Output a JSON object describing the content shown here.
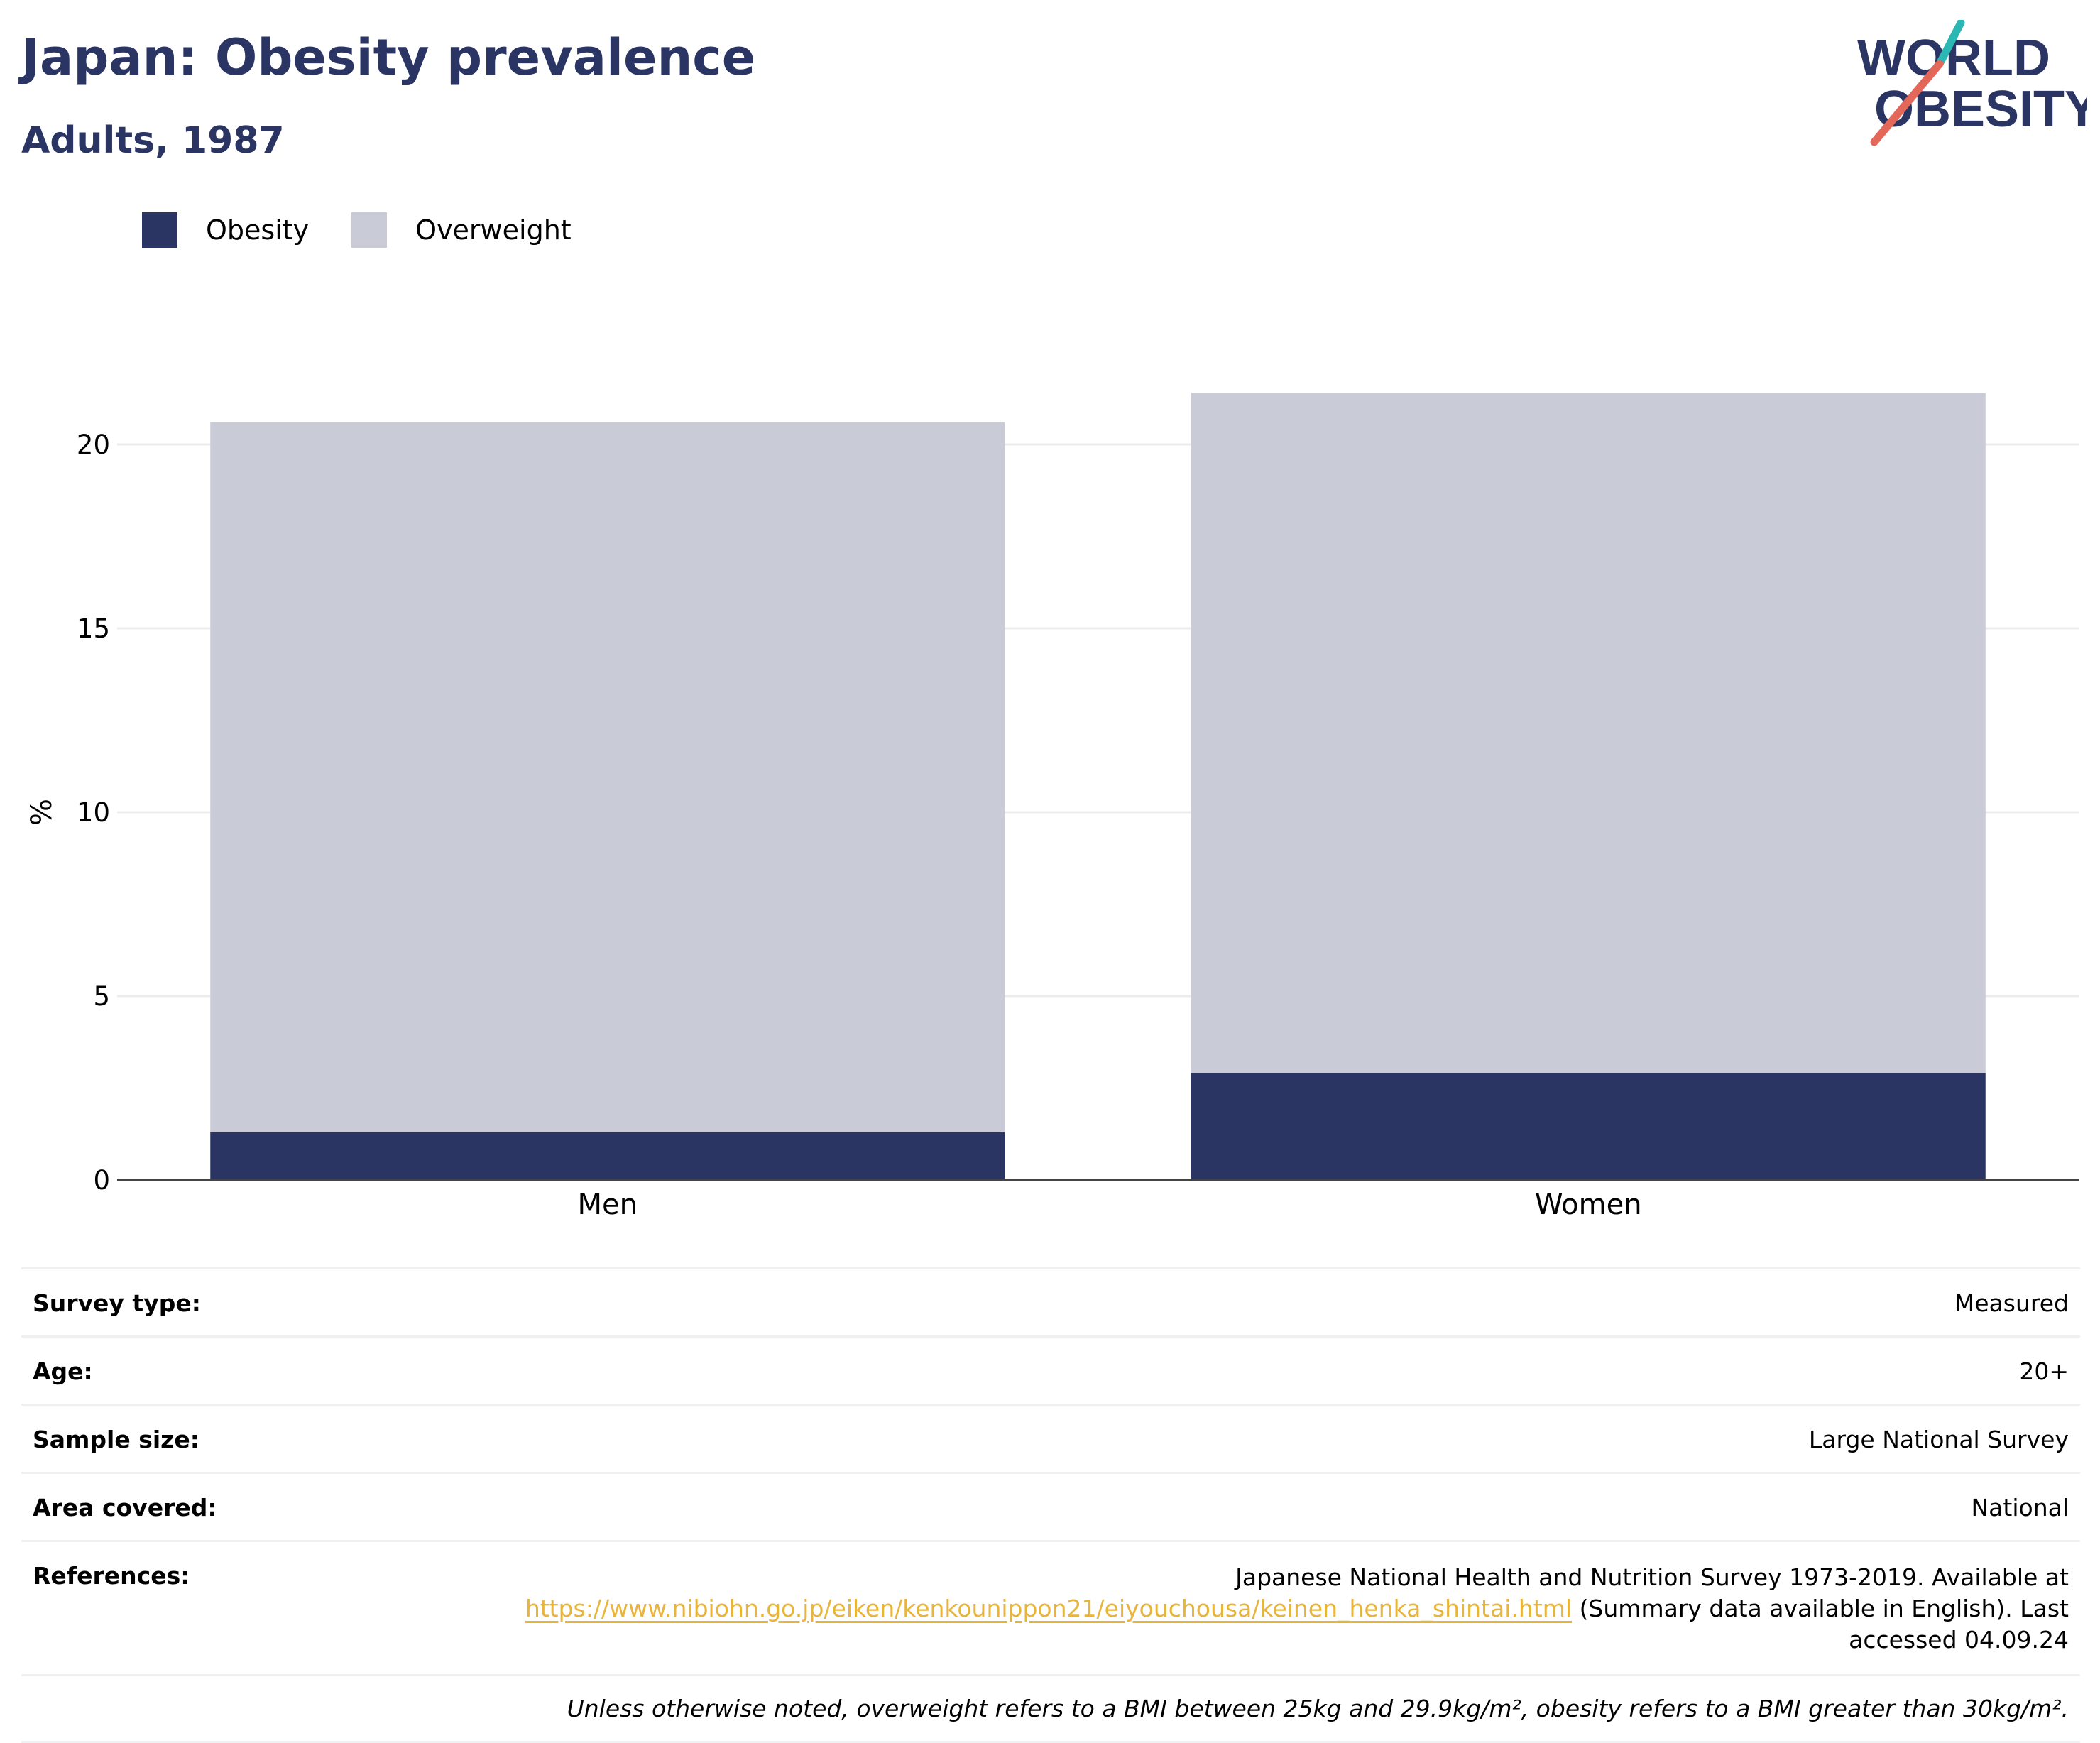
{
  "header": {
    "title": "Japan: Obesity prevalence",
    "subtitle": "Adults, 1987"
  },
  "logo": {
    "line1": "WORLD",
    "line2": "OBESITY",
    "colors": {
      "text": "#2b3563",
      "slash_red": "#e4685a",
      "slash_teal": "#2bb7b3"
    }
  },
  "legend": [
    {
      "label": "Obesity",
      "color": "#2b3563"
    },
    {
      "label": "Overweight",
      "color": "#c9cbd7"
    }
  ],
  "chart_data": {
    "type": "bar",
    "stacked": true,
    "categories": [
      "Men",
      "Women"
    ],
    "series": [
      {
        "name": "Obesity",
        "values": [
          1.3,
          2.9
        ],
        "color": "#2b3563"
      },
      {
        "name": "Overweight",
        "values": [
          19.3,
          18.5
        ],
        "color": "#c9cbd7"
      }
    ],
    "ylabel": "%",
    "xlabel": "",
    "ylim": [
      0,
      22
    ],
    "yticks": [
      0,
      5,
      10,
      15,
      20
    ],
    "grid": true,
    "legend_position": "top-left"
  },
  "table": {
    "rows": [
      {
        "label": "Survey type:",
        "value": "Measured"
      },
      {
        "label": "Age:",
        "value": "20+"
      },
      {
        "label": "Sample size:",
        "value": "Large National Survey"
      },
      {
        "label": "Area covered:",
        "value": "National"
      }
    ],
    "references": {
      "label": "References:",
      "text_before": "Japanese National Health and Nutrition Survey 1973-2019. Available at",
      "link": "https://www.nibiohn.go.jp/eiken/kenkounippon21/eiyouchousa/keinen_henka_shintai.html",
      "text_after": "(Summary data available in English). Last accessed 04.09.24"
    },
    "note": "Unless otherwise noted, overweight refers to a BMI between 25kg and 29.9kg/m², obesity refers to a BMI greater than 30kg/m²."
  }
}
